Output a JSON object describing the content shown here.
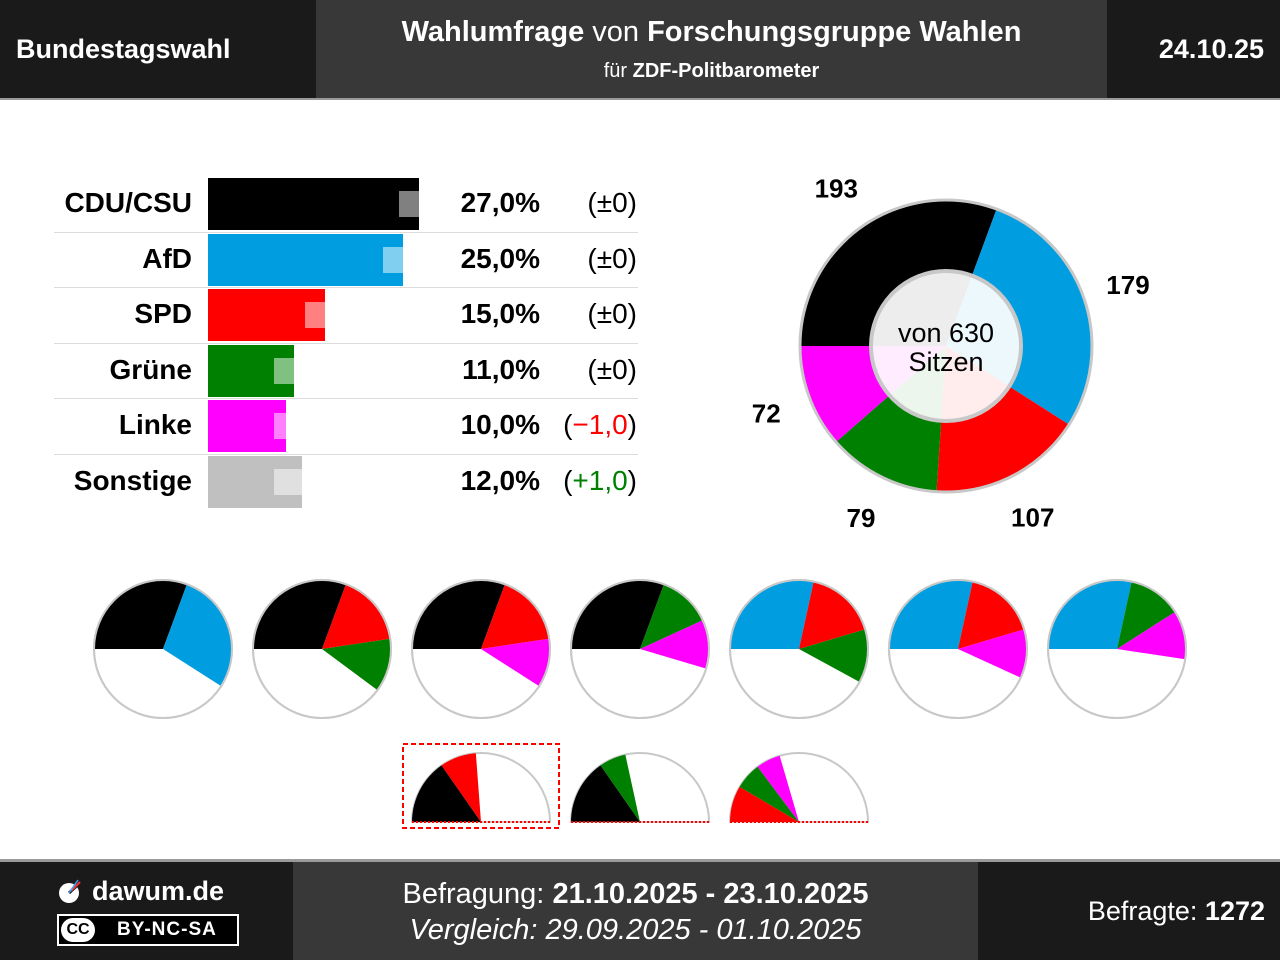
{
  "header": {
    "election": "Bundestagswahl",
    "title_bold1": "Wahlumfrage",
    "title_mid": " von ",
    "title_bold2": "Forschungsgruppe Wahlen",
    "subtitle_pre": "für ",
    "subtitle_bold": "ZDF-Politbarometer",
    "date": "24.10.25"
  },
  "colors": {
    "CDU/CSU": "#000000",
    "AfD": "#009ee0",
    "SPD": "#ff0000",
    "Grüne": "#008000",
    "Linke": "#ff00ff",
    "Sonstige": "#c0c0c0"
  },
  "chart_data": [
    {
      "type": "bar",
      "orientation": "horizontal",
      "categories": [
        "CDU/CSU",
        "AfD",
        "SPD",
        "Grüne",
        "Linke",
        "Sonstige"
      ],
      "series": [
        {
          "values": [
            27.0,
            25.0,
            15.0,
            11.0,
            10.0,
            12.0
          ]
        },
        {
          "values": [
            27.0,
            25.0,
            15.0,
            11.0,
            11.0,
            11.0
          ]
        }
      ],
      "value_labels": [
        "27,0%",
        "25,0%",
        "15,0%",
        "11,0%",
        "10,0%",
        "12,0%"
      ],
      "change_labels": [
        "(±0)",
        "(±0)",
        "(±0)",
        "(±0)",
        "(−1,0)",
        "(+1,0)"
      ],
      "change_colors": [
        "#000000",
        "#000000",
        "#000000",
        "#000000",
        "#ff0000",
        "#008000"
      ]
    },
    {
      "type": "pie",
      "style": "donut",
      "center_label_1": "von 630",
      "center_label_2": "Sitzen",
      "categories": [
        "CDU/CSU",
        "AfD",
        "SPD",
        "Grüne",
        "Linke"
      ],
      "values": [
        193,
        179,
        107,
        79,
        72
      ],
      "value_labels": [
        "193",
        "179",
        "107",
        "79",
        "72"
      ]
    },
    {
      "type": "pie",
      "style": "coalition-half-pies",
      "total_seats": 630,
      "coalitions": [
        {
          "parties": [
            "CDU/CSU",
            "AfD"
          ],
          "highlight": false
        },
        {
          "parties": [
            "CDU/CSU",
            "SPD",
            "Grüne"
          ],
          "highlight": false
        },
        {
          "parties": [
            "CDU/CSU",
            "SPD",
            "Linke"
          ],
          "highlight": false
        },
        {
          "parties": [
            "CDU/CSU",
            "Grüne",
            "Linke"
          ],
          "highlight": false
        },
        {
          "parties": [
            "AfD",
            "SPD",
            "Grüne"
          ],
          "highlight": false
        },
        {
          "parties": [
            "AfD",
            "SPD",
            "Linke"
          ],
          "highlight": false
        },
        {
          "parties": [
            "AfD",
            "Grüne",
            "Linke"
          ],
          "highlight": false
        },
        {
          "parties": [
            "CDU/CSU",
            "SPD"
          ],
          "highlight": true
        },
        {
          "parties": [
            "CDU/CSU",
            "Grüne"
          ],
          "highlight": false
        },
        {
          "parties": [
            "SPD",
            "Grüne",
            "Linke"
          ],
          "highlight": false
        }
      ]
    }
  ],
  "footer": {
    "site": "dawum.de",
    "license": "BY-NC-SA",
    "license_badge": "CC",
    "survey_label": "Befragung: ",
    "survey_dates": "21.10.2025 - 23.10.2025",
    "compare_label": "Vergleich: 29.09.2025 - 01.10.2025",
    "respondents_label": "Befragte: ",
    "respondents": "1272"
  }
}
